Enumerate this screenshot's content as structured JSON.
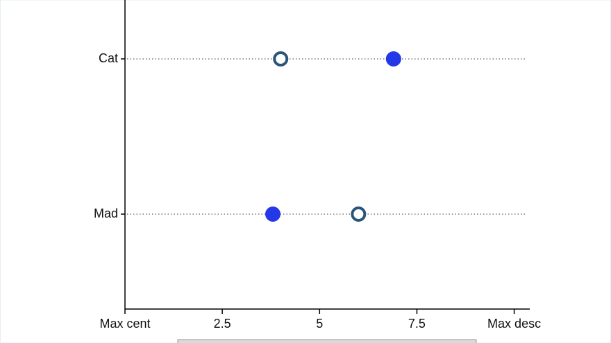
{
  "chart_data": {
    "type": "dot",
    "categories": [
      "Cat",
      "Mad"
    ],
    "series": [
      {
        "marker": "open",
        "color": "#2a5478",
        "values": [
          4.0,
          6.0
        ]
      },
      {
        "marker": "filled",
        "color": "#2438e8",
        "values": [
          6.9,
          3.8
        ]
      }
    ],
    "xlim": [
      0,
      10.4
    ],
    "xticks": [
      {
        "value": 0,
        "label": "Max cent"
      },
      2.5,
      5,
      7.5,
      {
        "value": 10,
        "label": "Max desc"
      }
    ]
  }
}
